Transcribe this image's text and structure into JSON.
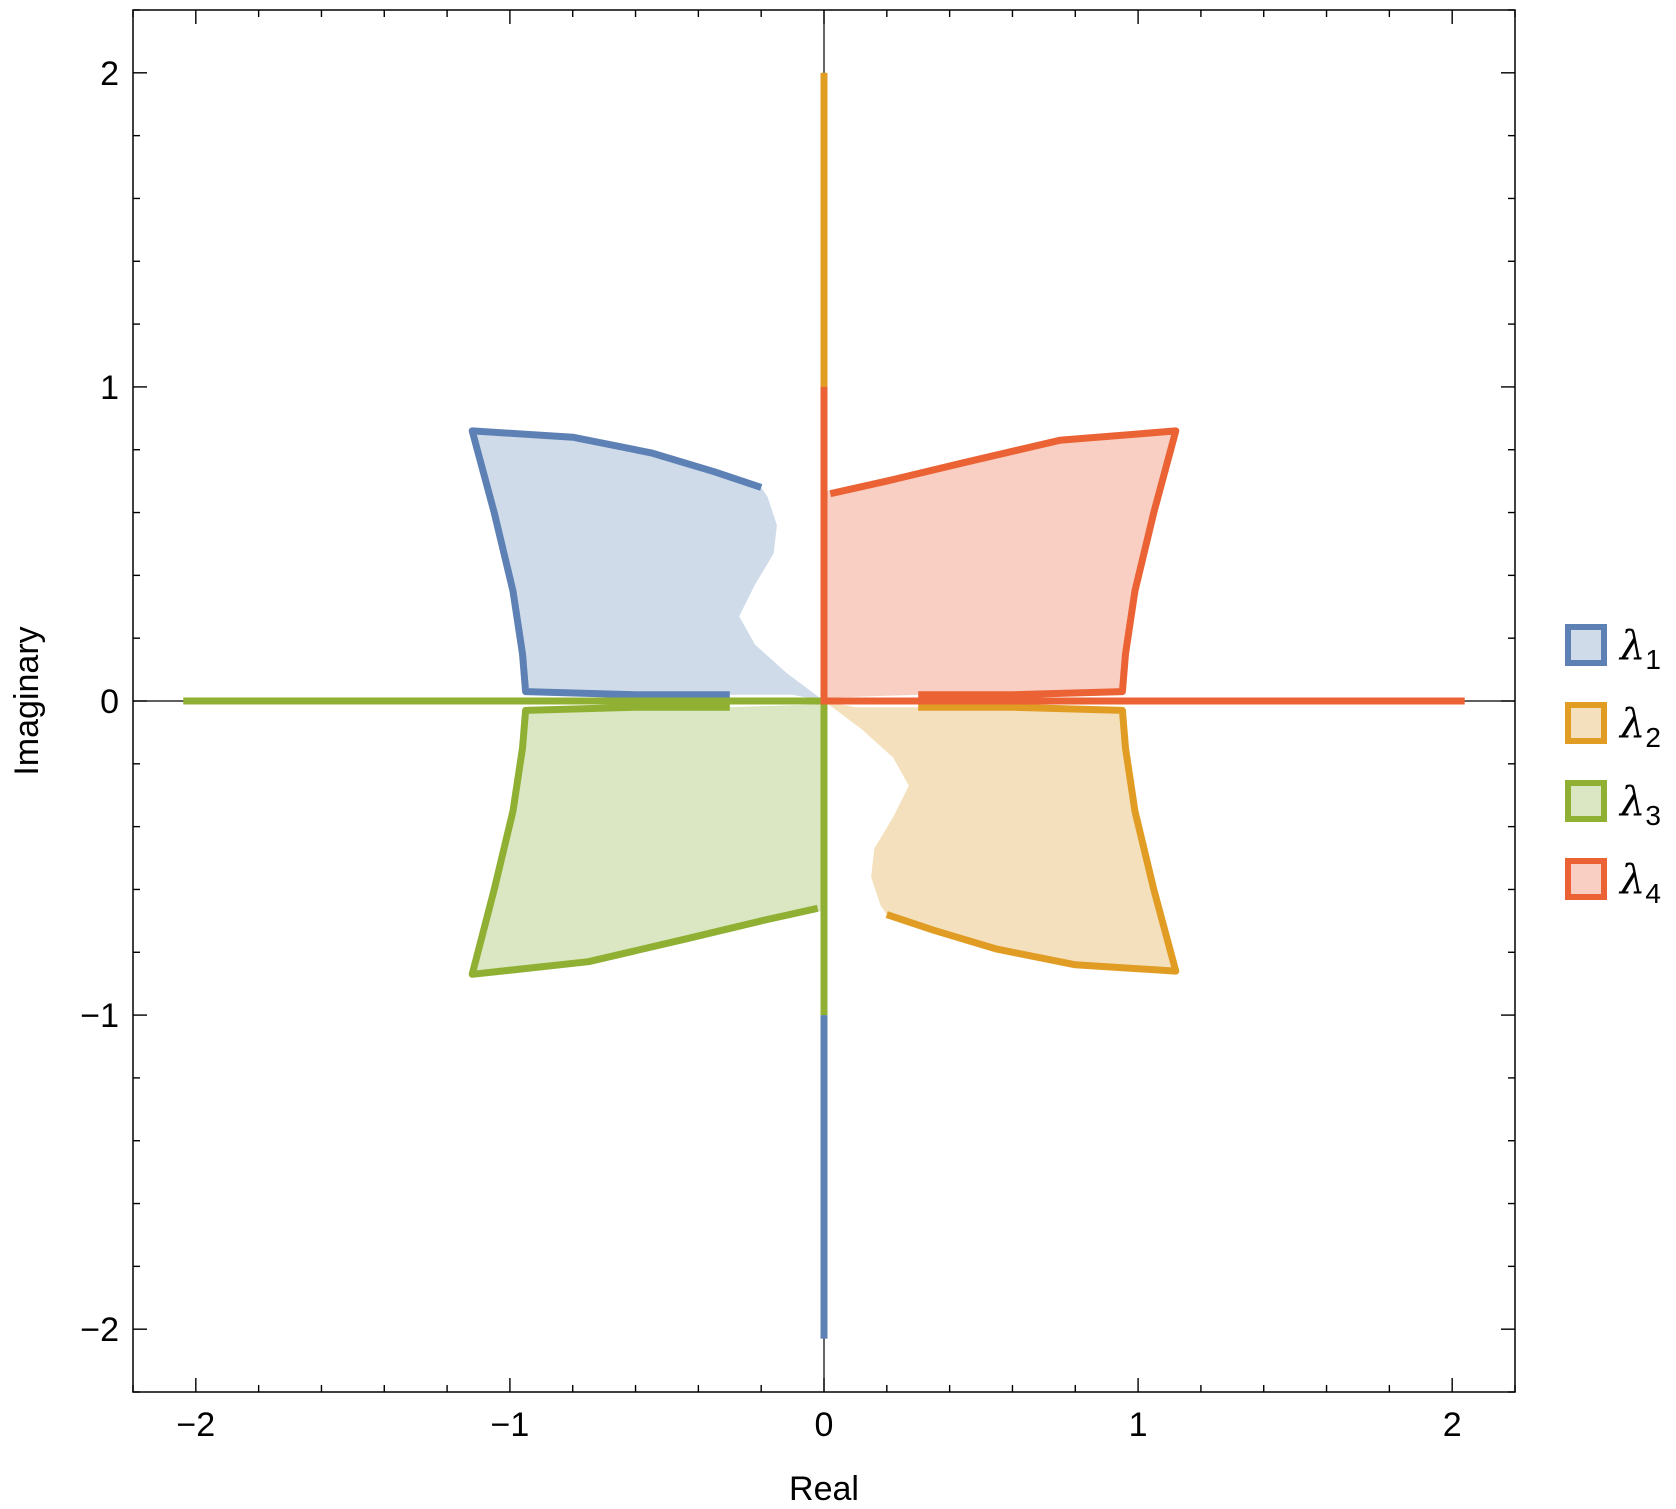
{
  "chart_data": {
    "type": "area",
    "title": "",
    "xlabel": "Real",
    "ylabel": "Imaginary",
    "xlim": [
      -2.2,
      2.2
    ],
    "ylim": [
      -2.2,
      2.2
    ],
    "xticks": [
      -2,
      -1,
      0,
      1,
      2
    ],
    "yticks": [
      -2,
      -1,
      0,
      1,
      2
    ],
    "xtick_labels": [
      "−2",
      "−1",
      "0",
      "1",
      "2"
    ],
    "ytick_labels": [
      "−2",
      "−1",
      "0",
      "1",
      "2"
    ],
    "grid": false,
    "legend_position": "right",
    "series": [
      {
        "name": "λ1",
        "label_main": "λ",
        "label_sub": "1",
        "color": "#5e81b5",
        "fill": "#cfdbe9",
        "region": [
          [
            -0.2,
            0.68
          ],
          [
            -0.35,
            0.73
          ],
          [
            -0.55,
            0.79
          ],
          [
            -0.8,
            0.84
          ],
          [
            -1.12,
            0.86
          ],
          [
            -1.05,
            0.6
          ],
          [
            -0.99,
            0.35
          ],
          [
            -0.96,
            0.15
          ],
          [
            -0.95,
            0.03
          ],
          [
            -0.6,
            0.02
          ],
          [
            -0.3,
            0.02
          ],
          [
            -0.1,
            0.02
          ],
          [
            0,
            0
          ],
          [
            -0.12,
            0.09
          ],
          [
            -0.22,
            0.18
          ],
          [
            -0.27,
            0.27
          ],
          [
            -0.22,
            0.37
          ],
          [
            -0.16,
            0.47
          ],
          [
            -0.15,
            0.56
          ],
          [
            -0.18,
            0.65
          ]
        ],
        "border": [
          [
            -0.2,
            0.68
          ],
          [
            -0.35,
            0.73
          ],
          [
            -0.55,
            0.79
          ],
          [
            -0.8,
            0.84
          ],
          [
            -1.12,
            0.86
          ],
          [
            -1.05,
            0.6
          ],
          [
            -0.99,
            0.35
          ],
          [
            -0.96,
            0.15
          ],
          [
            -0.95,
            0.03
          ],
          [
            -0.6,
            0.02
          ],
          [
            -0.3,
            0.02
          ]
        ],
        "branch": [
          [
            0,
            -1
          ],
          [
            0,
            -2.03
          ]
        ]
      },
      {
        "name": "λ2",
        "label_main": "λ",
        "label_sub": "2",
        "color": "#e19c24",
        "fill": "#f4e0bd",
        "region": [
          [
            0.2,
            -0.68
          ],
          [
            0.35,
            -0.73
          ],
          [
            0.55,
            -0.79
          ],
          [
            0.8,
            -0.84
          ],
          [
            1.12,
            -0.86
          ],
          [
            1.05,
            -0.6
          ],
          [
            0.99,
            -0.35
          ],
          [
            0.96,
            -0.15
          ],
          [
            0.95,
            -0.03
          ],
          [
            0.6,
            -0.02
          ],
          [
            0.3,
            -0.02
          ],
          [
            0.1,
            -0.02
          ],
          [
            0,
            0
          ],
          [
            0.12,
            -0.09
          ],
          [
            0.22,
            -0.18
          ],
          [
            0.27,
            -0.27
          ],
          [
            0.22,
            -0.37
          ],
          [
            0.16,
            -0.47
          ],
          [
            0.15,
            -0.56
          ],
          [
            0.18,
            -0.65
          ]
        ],
        "border": [
          [
            0.2,
            -0.68
          ],
          [
            0.35,
            -0.73
          ],
          [
            0.55,
            -0.79
          ],
          [
            0.8,
            -0.84
          ],
          [
            1.12,
            -0.86
          ],
          [
            1.05,
            -0.6
          ],
          [
            0.99,
            -0.35
          ],
          [
            0.96,
            -0.15
          ],
          [
            0.95,
            -0.03
          ],
          [
            0.6,
            -0.02
          ],
          [
            0.3,
            -0.02
          ]
        ],
        "branch": [
          [
            0,
            0.95
          ],
          [
            0,
            2.0
          ]
        ]
      },
      {
        "name": "λ3",
        "label_main": "λ",
        "label_sub": "3",
        "color": "#8fb032",
        "fill": "#dbe6c2",
        "region": [
          [
            -0.04,
            -0.67
          ],
          [
            -0.2,
            -0.7
          ],
          [
            -0.45,
            -0.76
          ],
          [
            -0.75,
            -0.83
          ],
          [
            -1.12,
            -0.87
          ],
          [
            -1.05,
            -0.6
          ],
          [
            -0.99,
            -0.35
          ],
          [
            -0.96,
            -0.15
          ],
          [
            -0.95,
            -0.03
          ],
          [
            -0.6,
            -0.02
          ],
          [
            -0.3,
            -0.02
          ],
          [
            0,
            -0.01
          ],
          [
            0,
            -0.67
          ]
        ],
        "border": [
          [
            -0.02,
            -0.66
          ],
          [
            -0.2,
            -0.7
          ],
          [
            -0.45,
            -0.76
          ],
          [
            -0.75,
            -0.83
          ],
          [
            -1.12,
            -0.87
          ],
          [
            -1.05,
            -0.6
          ],
          [
            -0.99,
            -0.35
          ],
          [
            -0.96,
            -0.15
          ],
          [
            -0.95,
            -0.03
          ],
          [
            -0.6,
            -0.02
          ],
          [
            -0.3,
            -0.02
          ]
        ],
        "branch": [
          [
            -2.04,
            0
          ],
          [
            0,
            0
          ],
          [
            0,
            -1.0
          ]
        ]
      },
      {
        "name": "λ4",
        "label_main": "λ",
        "label_sub": "4",
        "color": "#eb6235",
        "fill": "#f8cfc2",
        "region": [
          [
            0.04,
            0.67
          ],
          [
            0.2,
            0.7
          ],
          [
            0.45,
            0.76
          ],
          [
            0.75,
            0.83
          ],
          [
            1.12,
            0.86
          ],
          [
            1.05,
            0.6
          ],
          [
            0.99,
            0.35
          ],
          [
            0.96,
            0.15
          ],
          [
            0.95,
            0.03
          ],
          [
            0.6,
            0.02
          ],
          [
            0.3,
            0.02
          ],
          [
            0,
            0.01
          ],
          [
            0,
            0.67
          ]
        ],
        "border": [
          [
            0.02,
            0.66
          ],
          [
            0.2,
            0.7
          ],
          [
            0.45,
            0.76
          ],
          [
            0.75,
            0.83
          ],
          [
            1.12,
            0.86
          ],
          [
            1.05,
            0.6
          ],
          [
            0.99,
            0.35
          ],
          [
            0.96,
            0.15
          ],
          [
            0.95,
            0.03
          ],
          [
            0.6,
            0.02
          ],
          [
            0.3,
            0.02
          ]
        ],
        "branch": [
          [
            0,
            1.0
          ],
          [
            0,
            0
          ],
          [
            2.04,
            0
          ]
        ]
      }
    ]
  }
}
